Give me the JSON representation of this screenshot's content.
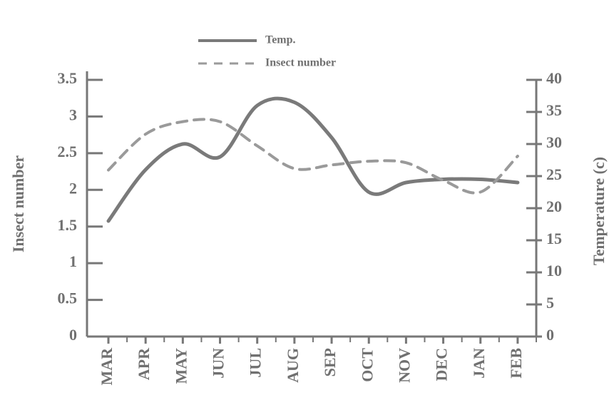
{
  "chart_data": {
    "type": "line",
    "categories": [
      "MAR",
      "APR",
      "MAY",
      "JUN",
      "JUL",
      "AUG",
      "SEP",
      "OCT",
      "NOV",
      "DEC",
      "JAN",
      "FEB"
    ],
    "series": [
      {
        "name": "Temp.",
        "color": "#7a7a7a",
        "dash": false,
        "axis": "y2",
        "values": [
          18,
          26,
          30,
          28,
          36,
          36.5,
          31,
          22.5,
          24,
          24.5,
          24.5,
          24
        ]
      },
      {
        "name": "Insect number",
        "color": "#9a9a9a",
        "dash": true,
        "values": [
          2.27,
          2.76,
          2.93,
          2.93,
          2.6,
          2.29,
          2.34,
          2.39,
          2.37,
          2.13,
          1.97,
          2.46
        ]
      }
    ],
    "y_label": "Insect number",
    "y2_label": "Temperature (c)",
    "ylim": [
      0,
      3.5
    ],
    "yticks": [
      0,
      0.5,
      1,
      1.5,
      2,
      2.5,
      3,
      3.5
    ],
    "y2lim": [
      0,
      40
    ],
    "y2ticks": [
      0,
      5,
      10,
      15,
      20,
      25,
      30,
      35,
      40
    ],
    "legend": "top"
  }
}
